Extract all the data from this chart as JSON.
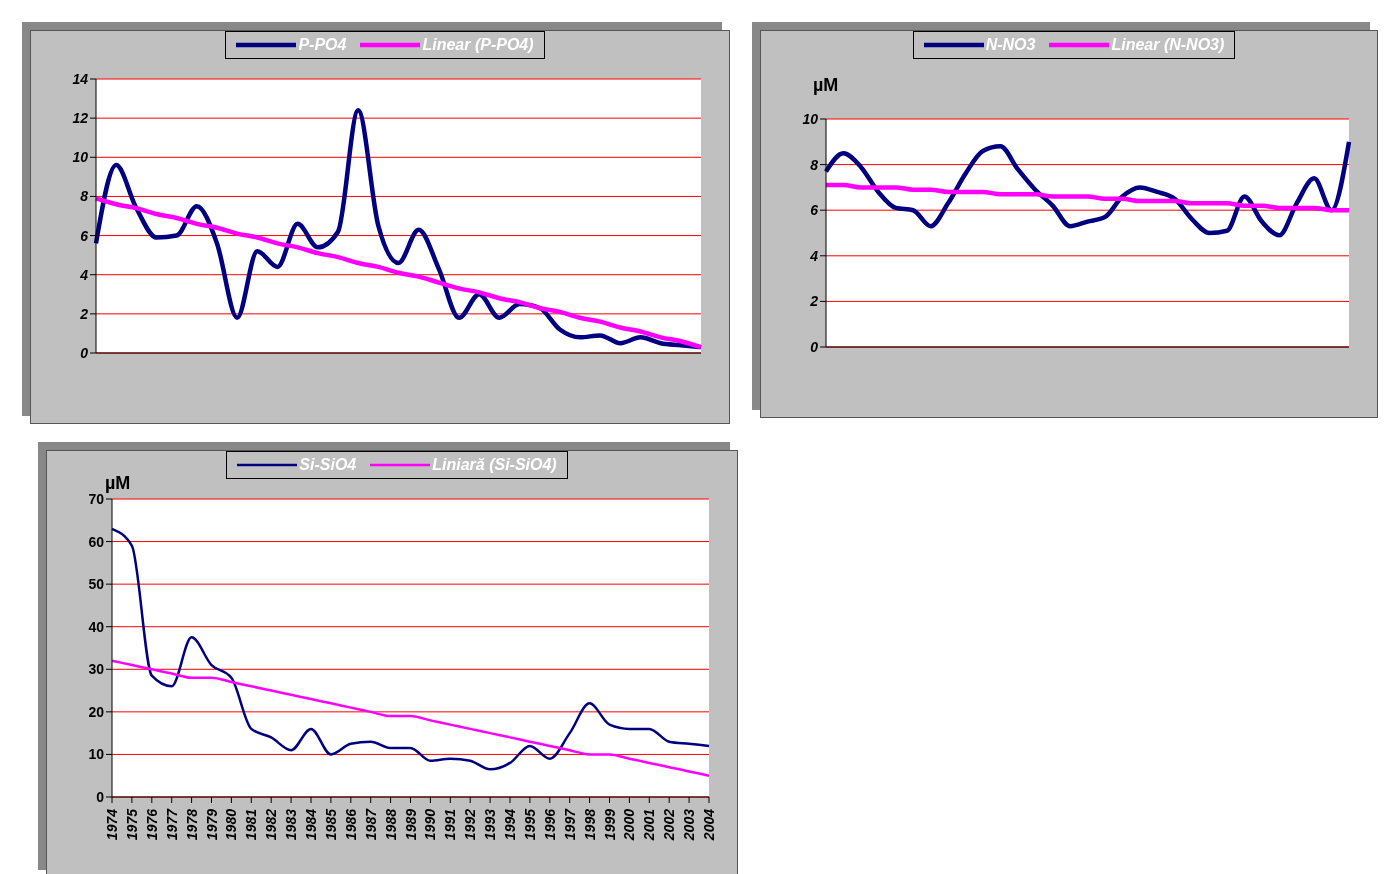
{
  "chart_data": [
    {
      "type": "line",
      "categories": [
        null,
        null,
        null,
        null,
        null,
        null,
        null,
        null,
        null,
        null,
        null,
        null,
        null,
        null,
        null,
        null,
        null,
        null,
        null,
        null,
        null,
        null,
        null,
        null,
        null,
        null,
        null,
        null,
        null,
        null,
        null
      ],
      "series": [
        {
          "name": "P-PO4",
          "color": "#000080",
          "values": [
            5.6,
            9.6,
            7.4,
            5.9,
            6.0,
            7.5,
            5.6,
            1.8,
            5.2,
            4.4,
            6.6,
            5.4,
            6.2,
            12.4,
            6.5,
            4.6,
            6.3,
            4.3,
            1.8,
            3.0,
            1.8,
            2.5,
            2.3,
            1.2,
            0.8,
            0.9,
            0.5,
            0.8,
            0.5,
            0.4,
            0.3
          ]
        },
        {
          "name": "Linear (P-PO4)",
          "color": "#ff00ff",
          "values": [
            7.9,
            7.6,
            7.4,
            7.1,
            6.9,
            6.6,
            6.4,
            6.1,
            5.9,
            5.6,
            5.4,
            5.1,
            4.9,
            4.6,
            4.4,
            4.1,
            3.9,
            3.6,
            3.3,
            3.1,
            2.8,
            2.6,
            2.3,
            2.1,
            1.8,
            1.6,
            1.3,
            1.1,
            0.8,
            0.6,
            0.3
          ]
        }
      ],
      "ylim": [
        0,
        14
      ],
      "yticks": [
        0,
        2,
        4,
        6,
        8,
        10,
        12,
        14
      ],
      "grid": "y",
      "legend": "top",
      "marker": "none",
      "line_style": "solid",
      "tick_labels": "y"
    },
    {
      "type": "line",
      "ylabel": "µM",
      "categories": [
        null,
        null,
        null,
        null,
        null,
        null,
        null,
        null,
        null,
        null,
        null,
        null,
        null,
        null,
        null,
        null,
        null,
        null,
        null,
        null,
        null,
        null,
        null,
        null,
        null,
        null,
        null,
        null,
        null,
        null,
        null
      ],
      "series": [
        {
          "name": "N-NO3",
          "color": "#000080",
          "values": [
            7.7,
            8.5,
            7.9,
            6.8,
            6.1,
            6.0,
            5.3,
            6.3,
            7.6,
            8.6,
            8.8,
            7.8,
            6.9,
            6.2,
            5.3,
            5.5,
            5.7,
            6.6,
            7.0,
            6.8,
            6.5,
            5.6,
            5.0,
            5.1,
            6.6,
            5.5,
            4.9,
            6.3,
            7.4,
            6.0,
            9.0
          ]
        },
        {
          "name": "Linear (N-NO3)",
          "color": "#ff00ff",
          "values": [
            7.1,
            7.1,
            7.0,
            7.0,
            7.0,
            6.9,
            6.9,
            6.8,
            6.8,
            6.8,
            6.7,
            6.7,
            6.7,
            6.6,
            6.6,
            6.6,
            6.5,
            6.5,
            6.4,
            6.4,
            6.4,
            6.3,
            6.3,
            6.3,
            6.2,
            6.2,
            6.1,
            6.1,
            6.1,
            6.0,
            6.0
          ]
        }
      ],
      "ylim": [
        0,
        10
      ],
      "yticks": [
        0,
        2,
        4,
        6,
        8,
        10
      ],
      "grid": "y",
      "legend": "top",
      "marker": "none",
      "line_style": "solid",
      "tick_labels": "y"
    },
    {
      "type": "line",
      "ylabel": "µM",
      "categories": [
        "1974",
        "1975",
        "1976",
        "1977",
        "1978",
        "1979",
        "1980",
        "1981",
        "1982",
        "1983",
        "1984",
        "1985",
        "1986",
        "1987",
        "1988",
        "1989",
        "1990",
        "1991",
        "1992",
        "1993",
        "1994",
        "1995",
        "1996",
        "1997",
        "1998",
        "1999",
        "2000",
        "2001",
        "2002",
        "2003",
        "2004"
      ],
      "series": [
        {
          "name": "Si-SiO4",
          "color": "#000080",
          "values": [
            63,
            59,
            28.5,
            26,
            37.5,
            31,
            28,
            16,
            14,
            11,
            16,
            10,
            12.5,
            13,
            11.5,
            11.5,
            8.5,
            9,
            8.5,
            6.5,
            8,
            12,
            9,
            15,
            22,
            17,
            16,
            16,
            13,
            12.5,
            12
          ]
        },
        {
          "name": "Liniară (Si-SiO4)",
          "color": "#ff00ff",
          "values": [
            32,
            31,
            30,
            29,
            28,
            28,
            27,
            26,
            25,
            24,
            23,
            22,
            21,
            20,
            19,
            19,
            18,
            17,
            16,
            15,
            14,
            13,
            12,
            11,
            10,
            10,
            9,
            8,
            7,
            6,
            5
          ]
        }
      ],
      "ylim": [
        0,
        70
      ],
      "yticks": [
        0,
        10,
        20,
        30,
        40,
        50,
        60,
        70
      ],
      "grid": "y",
      "legend": "top",
      "marker": "none",
      "line_style": "solid"
    }
  ]
}
